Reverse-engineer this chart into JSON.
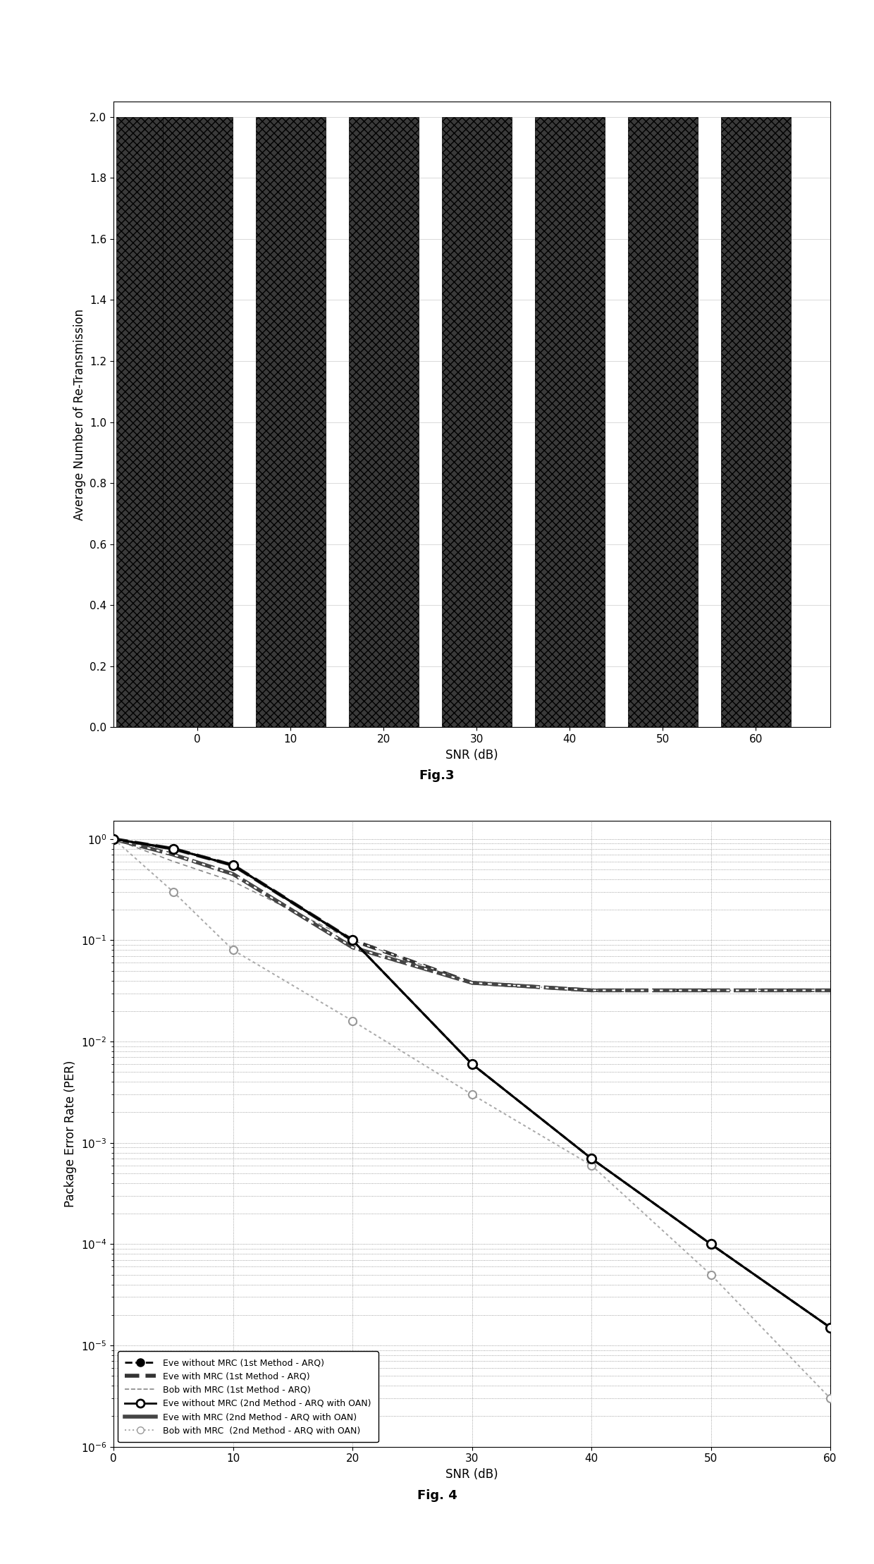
{
  "fig3": {
    "bar_positions": [
      -5,
      0,
      10,
      20,
      30,
      40,
      50,
      60
    ],
    "bar_heights": [
      2,
      2,
      2,
      2,
      2,
      2,
      2,
      2
    ],
    "bar_width": 7.5,
    "bar_color": "#3a3a3a",
    "bar_edgecolor": "#000000",
    "ylabel": "Average Number of Re-Transmission",
    "xlabel": "SNR (dB)",
    "xlim": [
      -9,
      68
    ],
    "ylim": [
      0,
      2.05
    ],
    "yticks": [
      0,
      0.2,
      0.4,
      0.6,
      0.8,
      1.0,
      1.2,
      1.4,
      1.6,
      1.8,
      2.0
    ],
    "xticks": [
      0,
      10,
      20,
      30,
      40,
      50,
      60
    ],
    "caption": "Fig.3",
    "hatch": "xxx"
  },
  "fig4": {
    "snr": [
      0,
      5,
      10,
      20,
      30,
      40,
      50,
      60
    ],
    "eve_no_mrc_1st": [
      1.0,
      0.8,
      0.55,
      0.1,
      0.006,
      0.0007,
      0.0001,
      1.5e-05
    ],
    "eve_mrc_1st": [
      1.0,
      0.8,
      0.55,
      0.1,
      0.038,
      0.032,
      0.032,
      0.032
    ],
    "bob_mrc_1st": [
      1.0,
      0.6,
      0.38,
      0.1,
      0.038,
      0.032,
      0.032,
      0.032
    ],
    "eve_no_mrc_2nd": [
      1.0,
      0.8,
      0.55,
      0.1,
      0.006,
      0.0007,
      0.0001,
      1.5e-05
    ],
    "eve_mrc_2nd": [
      1.0,
      0.7,
      0.45,
      0.085,
      0.038,
      0.032,
      0.032,
      0.032
    ],
    "bob_mrc_2nd": [
      1.0,
      0.3,
      0.08,
      0.016,
      0.003,
      0.0006,
      5e-05,
      3e-06
    ],
    "ylabel": "Package Error Rate (PER)",
    "xlabel": "SNR (dB)",
    "xlim": [
      0,
      60
    ],
    "ylim_low": 1e-06,
    "ylim_high": 1.5,
    "xticks": [
      0,
      10,
      20,
      30,
      40,
      50,
      60
    ],
    "caption": "Fig. 4",
    "legend": [
      "Eve without MRC (1st Method - ARQ)",
      "Eve with MRC (1st Method - ARQ)",
      "Bob with MRC (1st Method - ARQ)",
      "Eve without MRC (2nd Method - ARQ with OAN)",
      "Eve with MRC (2nd Method - ARQ with OAN)",
      "Bob with MRC  (2nd Method - ARQ with OAN)"
    ]
  }
}
